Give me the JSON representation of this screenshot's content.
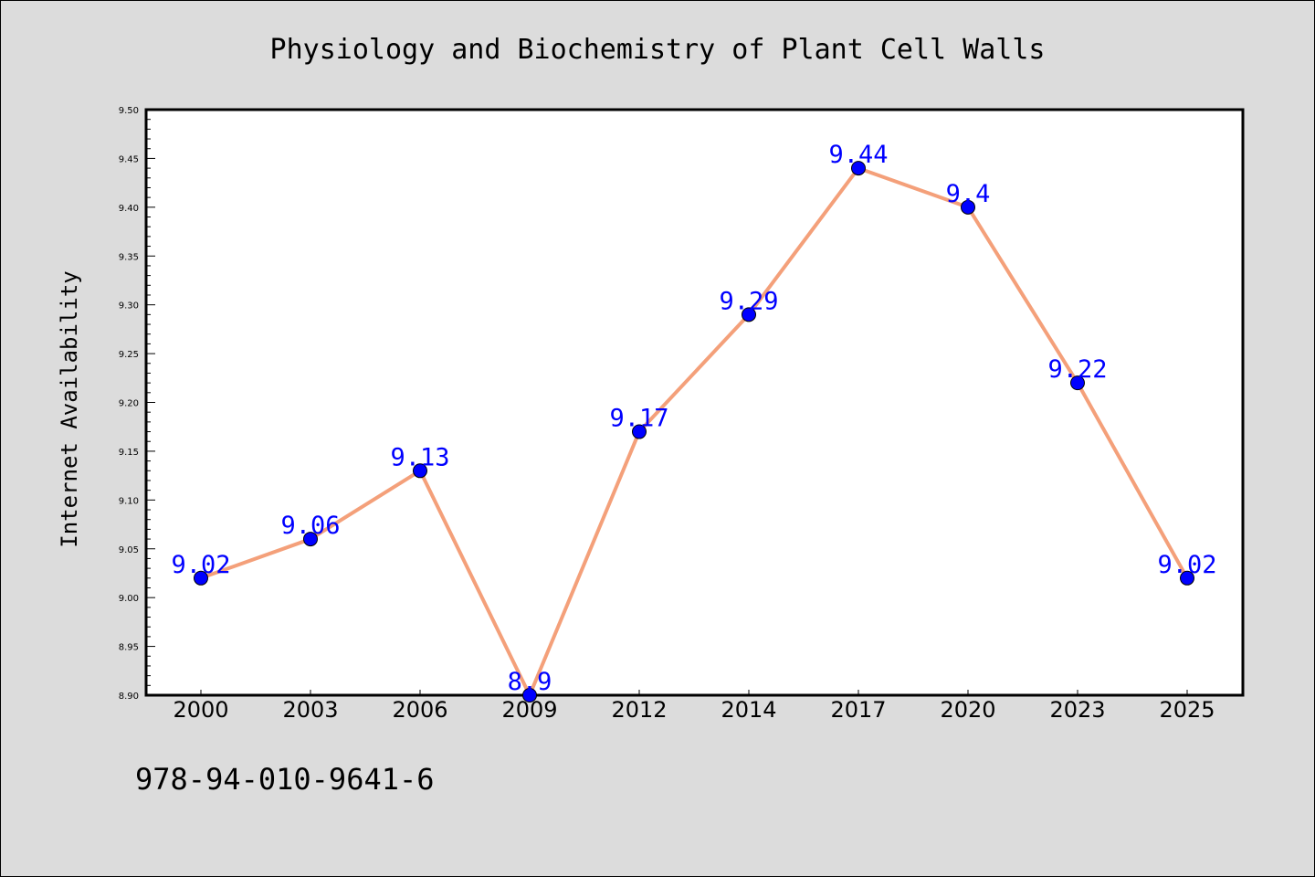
{
  "chart_data": {
    "type": "line",
    "title": "Physiology and Biochemistry of Plant Cell Walls",
    "xlabel": "",
    "ylabel": "Internet Availability",
    "categories": [
      "2000",
      "2003",
      "2006",
      "2009",
      "2012",
      "2014",
      "2017",
      "2020",
      "2023",
      "2025"
    ],
    "series": [
      {
        "values": [
          9.02,
          9.06,
          9.13,
          8.9,
          9.17,
          9.29,
          9.44,
          9.4,
          9.22,
          9.02
        ],
        "data_labels": [
          "9.02",
          "9.06",
          "9.13",
          "8.9",
          "9.17",
          "9.29",
          "9.44",
          "9.4",
          "9.22",
          "9.02"
        ]
      }
    ],
    "ylim": [
      8.9,
      9.5
    ],
    "yticks": [
      "8.90",
      "8.95",
      "9.00",
      "9.05",
      "9.10",
      "9.15",
      "9.20",
      "9.25",
      "9.30",
      "9.35",
      "9.40",
      "9.45",
      "9.50"
    ],
    "grid": false,
    "legend": "none",
    "colors": {
      "line": "#f4a07a",
      "marker": "#0000ff",
      "data_label": "#0000ff",
      "plot_background": "#ffffff",
      "figure_background": "#dcdcdc"
    }
  },
  "footer": {
    "isbn": "978-94-010-9641-6"
  }
}
